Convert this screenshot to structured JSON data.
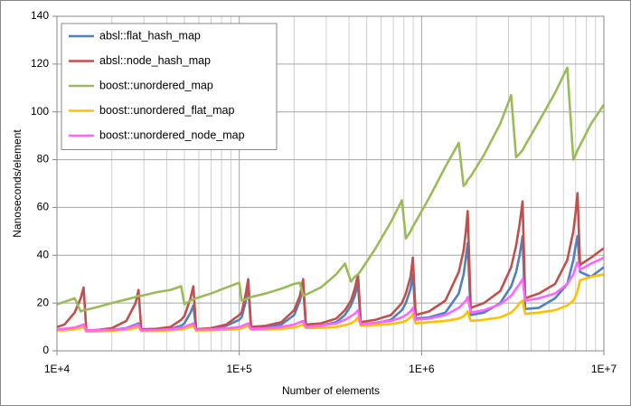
{
  "chart_data": {
    "type": "line",
    "x_label": "Number of elements",
    "y_label": "Nanoseconds/element",
    "x_log": true,
    "grid": true,
    "minor_grid": true,
    "legend": "upper left",
    "xlim": [
      10000,
      10000000
    ],
    "xticks": [
      {
        "value": 10000,
        "label": "1E+4"
      },
      {
        "value": 100000,
        "label": "1E+5"
      },
      {
        "value": 1000000,
        "label": "1E+6"
      },
      {
        "value": 10000000,
        "label": "1E+7"
      }
    ],
    "ylim": [
      0,
      140
    ],
    "yticks": [
      0,
      20,
      40,
      60,
      80,
      100,
      120,
      140
    ],
    "x": [
      10000,
      11000,
      12500,
      13500,
      14000,
      14500,
      17000,
      20000,
      24000,
      27000,
      28000,
      29000,
      35000,
      42000,
      48000,
      50000,
      54000,
      56000,
      58000,
      70000,
      85000,
      100000,
      103000,
      108000,
      112000,
      116000,
      140000,
      170000,
      200000,
      215000,
      224000,
      232000,
      280000,
      340000,
      380000,
      410000,
      430000,
      448000,
      464000,
      560000,
      680000,
      780000,
      820000,
      870000,
      896000,
      928000,
      1100000,
      1350000,
      1600000,
      1700000,
      1750000,
      1790000,
      1860000,
      2200000,
      2700000,
      3100000,
      3300000,
      3450000,
      3580000,
      3700000,
      4400000,
      5400000,
      6300000,
      6800000,
      7000000,
      7170000,
      7400000,
      8500000,
      10000000
    ],
    "series": [
      {
        "name": "absl::flat_hash_map",
        "color": "#4f81bd",
        "values": [
          9,
          9,
          9.5,
          10.5,
          11,
          8.5,
          8.5,
          8.8,
          9.5,
          11,
          11.5,
          8.8,
          8.8,
          9.2,
          10.5,
          11.5,
          16,
          19,
          9,
          9.2,
          10.5,
          13,
          14,
          20,
          27,
          9.5,
          10,
          11,
          15,
          21,
          27,
          10,
          10.5,
          12,
          15,
          19,
          23,
          28,
          11,
          11.5,
          13,
          17,
          20,
          26,
          32,
          13.5,
          14,
          16,
          24,
          32,
          39,
          45,
          15,
          16,
          20,
          27,
          33,
          40,
          48,
          17.5,
          18,
          22,
          28,
          38,
          44,
          48,
          33,
          31,
          35
        ]
      },
      {
        "name": "absl::node_hash_map",
        "color": "#c0504d",
        "values": [
          10,
          11,
          16,
          22,
          26.5,
          8.5,
          8.8,
          9.5,
          12.5,
          20,
          25.5,
          9,
          9.2,
          10,
          13,
          14.5,
          22,
          27,
          9,
          9.5,
          11,
          15,
          16,
          23,
          30,
          10,
          10.5,
          12,
          17,
          23,
          30,
          11,
          11.5,
          13.5,
          17,
          21,
          26,
          32,
          12,
          13,
          15,
          20,
          24,
          31,
          39,
          15,
          16.5,
          21,
          33,
          42,
          50,
          58.5,
          18,
          20,
          25,
          35,
          44,
          53,
          62.5,
          22,
          24,
          28,
          38,
          50,
          58,
          66,
          36,
          39,
          43
        ]
      },
      {
        "name": "boost::unordered_map",
        "color": "#9bbb59",
        "values": [
          19.5,
          20.5,
          22,
          16.5,
          17,
          17.2,
          18.5,
          20,
          21.5,
          22.5,
          23,
          23,
          24.5,
          25.5,
          27,
          19.5,
          21,
          21.5,
          22,
          24,
          26.5,
          28.5,
          21,
          21.5,
          22,
          22.5,
          24,
          26,
          28,
          28.5,
          23,
          23.5,
          26.5,
          32,
          36.5,
          29,
          31,
          32,
          33.5,
          43,
          54,
          63,
          47,
          50,
          52,
          54,
          64,
          77,
          87,
          69,
          70,
          71.5,
          73,
          82,
          95,
          107,
          81,
          82.5,
          84,
          86,
          96,
          108,
          118.5,
          80,
          82,
          84,
          86,
          95,
          103
        ]
      },
      {
        "name": "boost::unordered_flat_map",
        "color": "#ffc000",
        "values": [
          8.5,
          8.6,
          9,
          9.5,
          10,
          8,
          8.2,
          8.4,
          8.8,
          9.5,
          10,
          8.3,
          8.4,
          8.6,
          9,
          9.3,
          10,
          10.5,
          8.5,
          8.6,
          8.8,
          9.2,
          9.4,
          10,
          10.5,
          8.8,
          8.9,
          9.2,
          9.8,
          10.5,
          11,
          9.5,
          9.6,
          10,
          10.8,
          11.5,
          12.5,
          14,
          10.5,
          10.8,
          11.2,
          12,
          12.5,
          14,
          15.5,
          11.5,
          12,
          12.5,
          13.5,
          14.5,
          15.5,
          16.5,
          12.5,
          13,
          14,
          16,
          18,
          20,
          21,
          15.5,
          16,
          17,
          19,
          21,
          23,
          25,
          29.5,
          31,
          32
        ]
      },
      {
        "name": "boost::unordered_node_map",
        "color": "#ff66ff",
        "values": [
          9,
          9.2,
          9.8,
          10.5,
          11,
          8.5,
          8.6,
          8.8,
          9.3,
          10.5,
          11,
          8.6,
          8.7,
          9,
          9.6,
          10,
          11,
          11.5,
          8.8,
          9,
          9.4,
          10,
          10.3,
          11,
          11.5,
          9.2,
          9.4,
          10,
          11,
          12,
          12.5,
          10,
          10.5,
          11.5,
          13,
          14.5,
          15.5,
          17,
          11,
          11.8,
          12.5,
          14,
          15,
          16.5,
          18,
          13,
          13.5,
          15,
          18,
          20,
          21,
          22.5,
          16,
          17,
          19.5,
          23,
          26,
          28,
          30,
          21,
          22,
          24,
          28,
          32,
          35,
          37,
          34,
          36.5,
          39
        ]
      }
    ]
  }
}
